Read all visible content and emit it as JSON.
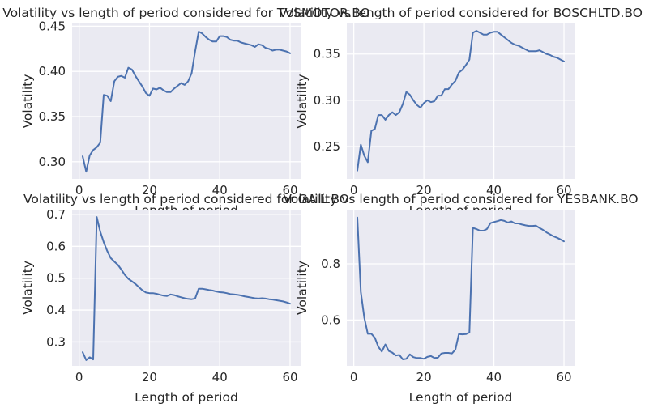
{
  "chart_data": [
    {
      "type": "line",
      "title": "Volatility vs length of period considered for TVSMOTOR.BO",
      "xlabel": "Length of period",
      "ylabel": "Volatility",
      "xlim": [
        -2,
        63
      ],
      "ylim": [
        0.281,
        0.453
      ],
      "xticks": [
        0,
        20,
        40,
        60
      ],
      "yticks": [
        0.3,
        0.35,
        0.4,
        0.45
      ],
      "ytick_labels": [
        "0.30",
        "0.35",
        "0.40",
        "0.45"
      ],
      "grid": true,
      "x": [
        1,
        2,
        3,
        4,
        5,
        6,
        7,
        8,
        9,
        10,
        11,
        12,
        13,
        14,
        15,
        16,
        17,
        18,
        19,
        20,
        21,
        22,
        23,
        24,
        25,
        26,
        27,
        28,
        29,
        30,
        31,
        32,
        33,
        34,
        35,
        36,
        37,
        38,
        39,
        40,
        41,
        42,
        43,
        44,
        45,
        46,
        47,
        48,
        49,
        50,
        51,
        52,
        53,
        54,
        55,
        56,
        57,
        58,
        59,
        60
      ],
      "series": [
        {
          "values": [
            0.306,
            0.289,
            0.307,
            0.313,
            0.316,
            0.321,
            0.374,
            0.373,
            0.367,
            0.389,
            0.394,
            0.395,
            0.393,
            0.404,
            0.402,
            0.395,
            0.389,
            0.383,
            0.376,
            0.373,
            0.381,
            0.38,
            0.382,
            0.379,
            0.377,
            0.377,
            0.381,
            0.384,
            0.387,
            0.385,
            0.389,
            0.398,
            0.422,
            0.444,
            0.442,
            0.438,
            0.435,
            0.433,
            0.433,
            0.439,
            0.439,
            0.438,
            0.435,
            0.434,
            0.434,
            0.432,
            0.431,
            0.43,
            0.429,
            0.427,
            0.43,
            0.429,
            0.426,
            0.425,
            0.423,
            0.424,
            0.424,
            0.423,
            0.422,
            0.42
          ]
        }
      ]
    },
    {
      "type": "line",
      "title": "Volatility vs length of period considered for BOSCHLTD.BO",
      "xlabel": "Length of period",
      "ylabel": "Volatility",
      "xlim": [
        -2,
        63
      ],
      "ylim": [
        0.215,
        0.383
      ],
      "xticks": [
        0,
        20,
        40,
        60
      ],
      "yticks": [
        0.25,
        0.3,
        0.35
      ],
      "ytick_labels": [
        "0.25",
        "0.30",
        "0.35"
      ],
      "grid": true,
      "x": [
        1,
        2,
        3,
        4,
        5,
        6,
        7,
        8,
        9,
        10,
        11,
        12,
        13,
        14,
        15,
        16,
        17,
        18,
        19,
        20,
        21,
        22,
        23,
        24,
        25,
        26,
        27,
        28,
        29,
        30,
        31,
        32,
        33,
        34,
        35,
        36,
        37,
        38,
        39,
        40,
        41,
        42,
        43,
        44,
        45,
        46,
        47,
        48,
        49,
        50,
        51,
        52,
        53,
        54,
        55,
        56,
        57,
        58,
        59,
        60
      ],
      "series": [
        {
          "values": [
            0.224,
            0.252,
            0.24,
            0.233,
            0.267,
            0.269,
            0.284,
            0.284,
            0.279,
            0.284,
            0.287,
            0.284,
            0.287,
            0.296,
            0.309,
            0.306,
            0.3,
            0.295,
            0.292,
            0.297,
            0.3,
            0.298,
            0.299,
            0.305,
            0.305,
            0.312,
            0.312,
            0.317,
            0.321,
            0.33,
            0.333,
            0.338,
            0.344,
            0.373,
            0.375,
            0.373,
            0.371,
            0.371,
            0.373,
            0.374,
            0.374,
            0.371,
            0.368,
            0.365,
            0.362,
            0.36,
            0.359,
            0.357,
            0.355,
            0.353,
            0.353,
            0.353,
            0.354,
            0.352,
            0.35,
            0.349,
            0.347,
            0.346,
            0.344,
            0.342
          ]
        }
      ]
    },
    {
      "type": "line",
      "title": "Volatility vs length of period considered for GAIL.BO",
      "xlabel": "Length of period",
      "ylabel": "Volatility",
      "xlim": [
        -2,
        63
      ],
      "ylim": [
        0.225,
        0.715
      ],
      "xticks": [
        0,
        20,
        40,
        60
      ],
      "yticks": [
        0.3,
        0.4,
        0.5,
        0.6,
        0.7
      ],
      "ytick_labels": [
        "0.3",
        "0.4",
        "0.5",
        "0.6",
        "0.7"
      ],
      "grid": true,
      "x": [
        1,
        2,
        3,
        4,
        5,
        6,
        7,
        8,
        9,
        10,
        11,
        12,
        13,
        14,
        15,
        16,
        17,
        18,
        19,
        20,
        21,
        22,
        23,
        24,
        25,
        26,
        27,
        28,
        29,
        30,
        31,
        32,
        33,
        34,
        35,
        36,
        37,
        38,
        39,
        40,
        41,
        42,
        43,
        44,
        45,
        46,
        47,
        48,
        49,
        50,
        51,
        52,
        53,
        54,
        55,
        56,
        57,
        58,
        59,
        60
      ],
      "series": [
        {
          "values": [
            0.268,
            0.243,
            0.252,
            0.245,
            0.692,
            0.646,
            0.613,
            0.585,
            0.563,
            0.552,
            0.542,
            0.527,
            0.51,
            0.498,
            0.49,
            0.482,
            0.472,
            0.462,
            0.455,
            0.453,
            0.453,
            0.451,
            0.448,
            0.445,
            0.444,
            0.449,
            0.447,
            0.443,
            0.44,
            0.437,
            0.435,
            0.434,
            0.436,
            0.467,
            0.467,
            0.465,
            0.463,
            0.461,
            0.458,
            0.456,
            0.455,
            0.453,
            0.45,
            0.449,
            0.448,
            0.446,
            0.443,
            0.441,
            0.439,
            0.437,
            0.436,
            0.437,
            0.436,
            0.434,
            0.433,
            0.431,
            0.429,
            0.427,
            0.424,
            0.42
          ]
        }
      ]
    },
    {
      "type": "line",
      "title": "Volatility vs length of period considered for YESBANK.BO",
      "xlabel": "Length of period",
      "ylabel": "Volatility",
      "xlim": [
        -2,
        63
      ],
      "ylim": [
        0.437,
        0.993
      ],
      "xticks": [
        0,
        20,
        40,
        60
      ],
      "yticks": [
        0.6,
        0.8
      ],
      "ytick_labels": [
        "0.6",
        "0.8"
      ],
      "grid": true,
      "x": [
        1,
        2,
        3,
        4,
        5,
        6,
        7,
        8,
        9,
        10,
        11,
        12,
        13,
        14,
        15,
        16,
        17,
        18,
        19,
        20,
        21,
        22,
        23,
        24,
        25,
        26,
        27,
        28,
        29,
        30,
        31,
        32,
        33,
        34,
        35,
        36,
        37,
        38,
        39,
        40,
        41,
        42,
        43,
        44,
        45,
        46,
        47,
        48,
        49,
        50,
        51,
        52,
        53,
        54,
        55,
        56,
        57,
        58,
        59,
        60
      ],
      "series": [
        {
          "values": [
            0.965,
            0.7,
            0.608,
            0.551,
            0.551,
            0.537,
            0.505,
            0.488,
            0.513,
            0.49,
            0.484,
            0.474,
            0.476,
            0.46,
            0.462,
            0.478,
            0.468,
            0.465,
            0.465,
            0.462,
            0.469,
            0.472,
            0.465,
            0.466,
            0.481,
            0.483,
            0.483,
            0.481,
            0.495,
            0.55,
            0.549,
            0.55,
            0.556,
            0.928,
            0.924,
            0.918,
            0.918,
            0.924,
            0.945,
            0.949,
            0.952,
            0.956,
            0.953,
            0.947,
            0.951,
            0.944,
            0.944,
            0.94,
            0.937,
            0.935,
            0.935,
            0.936,
            0.928,
            0.921,
            0.912,
            0.905,
            0.898,
            0.893,
            0.887,
            0.88
          ]
        }
      ]
    }
  ]
}
